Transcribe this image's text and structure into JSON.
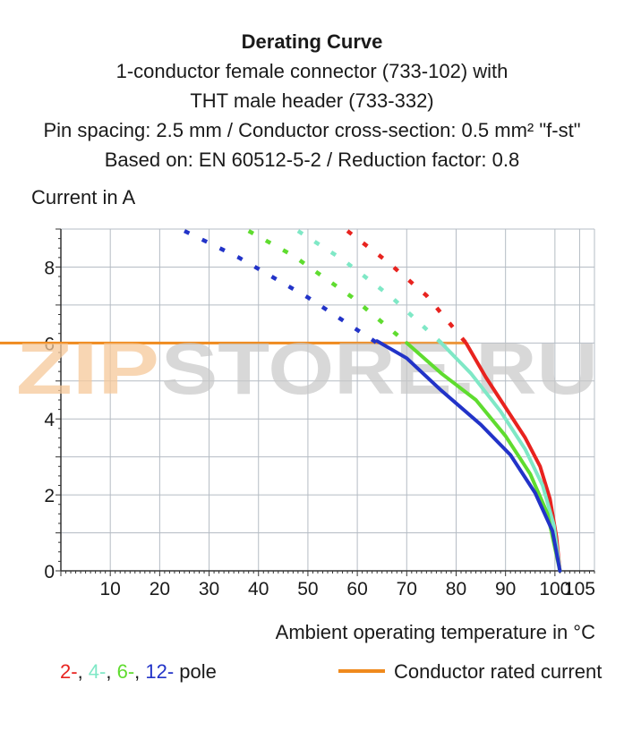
{
  "header": {
    "title": "Derating Curve",
    "line1": "1-conductor female connector (733-102) with",
    "line2": "THT male header (733-332)",
    "line3": "Pin spacing: 2.5 mm / Conductor cross-section: 0.5 mm² \"f-st\"",
    "line4": "Based on: EN 60512-5-2 / Reduction factor: 0.8"
  },
  "legend": {
    "pole_items": [
      {
        "label": "2-",
        "color": "#e8231f"
      },
      {
        "label": ", ",
        "color": "#1a1a1a"
      },
      {
        "label": "4-",
        "color": "#7fe8c6"
      },
      {
        "label": ", ",
        "color": "#1a1a1a"
      },
      {
        "label": "6-",
        "color": "#5fdc2f"
      },
      {
        "label": ", ",
        "color": "#1a1a1a"
      },
      {
        "label": "12-",
        "color": "#2233c8"
      },
      {
        "label": " pole",
        "color": "#1a1a1a"
      }
    ],
    "rated_label": "Conductor rated current",
    "rated_color": "#ef8a1d"
  },
  "watermark": {
    "text": "ZIPSTORE.RU",
    "colors": {
      "zip": "#f6c89a",
      "store": "#c7c7c7"
    }
  },
  "chart_data": {
    "type": "line",
    "xlabel": "Ambient operating temperature in °C",
    "ylabel": "Current in A",
    "xlim": [
      0,
      108
    ],
    "ylim": [
      0,
      9
    ],
    "x_ticks": [
      10,
      20,
      30,
      40,
      50,
      60,
      70,
      80,
      90,
      100,
      105
    ],
    "y_ticks": [
      0,
      2,
      4,
      6,
      8
    ],
    "y_zero_label": "0",
    "grid": true,
    "legend_position": "bottom",
    "rated_current": 6,
    "series": [
      {
        "color": "#e8231f",
        "dashed": [
          [
            58,
            8.95
          ],
          [
            66,
            8.15
          ],
          [
            74,
            7.25
          ],
          [
            82,
            6
          ]
        ],
        "solid": [
          [
            82,
            6
          ],
          [
            86,
            5.1
          ],
          [
            90,
            4.3
          ],
          [
            94,
            3.5
          ],
          [
            97,
            2.75
          ],
          [
            99,
            1.9
          ],
          [
            100.3,
            0.9
          ],
          [
            101,
            0
          ]
        ]
      },
      {
        "color": "#7fe8c6",
        "dashed": [
          [
            48,
            8.95
          ],
          [
            57,
            8.2
          ],
          [
            67,
            7.2
          ],
          [
            77,
            6
          ]
        ],
        "solid": [
          [
            77,
            6
          ],
          [
            83,
            5.2
          ],
          [
            89,
            4.2
          ],
          [
            94,
            3.2
          ],
          [
            97.5,
            2.25
          ],
          [
            99.8,
            1.2
          ],
          [
            101,
            0
          ]
        ]
      },
      {
        "color": "#5fdc2f",
        "dashed": [
          [
            38,
            8.95
          ],
          [
            47,
            8.3
          ],
          [
            59,
            7.2
          ],
          [
            70,
            6
          ]
        ],
        "solid": [
          [
            70,
            6
          ],
          [
            77,
            5.2
          ],
          [
            84,
            4.5
          ],
          [
            90,
            3.55
          ],
          [
            95,
            2.55
          ],
          [
            98.5,
            1.5
          ],
          [
            101,
            0
          ]
        ]
      },
      {
        "color": "#2233c8",
        "dashed": [
          [
            25,
            8.95
          ],
          [
            36,
            8.25
          ],
          [
            50,
            7.2
          ],
          [
            64,
            6
          ]
        ],
        "solid": [
          [
            64,
            6.05
          ],
          [
            70,
            5.6
          ],
          [
            77,
            4.75
          ],
          [
            85,
            3.85
          ],
          [
            91,
            3.05
          ],
          [
            96,
            2.05
          ],
          [
            99.5,
            1.05
          ],
          [
            101,
            0
          ]
        ]
      }
    ]
  }
}
